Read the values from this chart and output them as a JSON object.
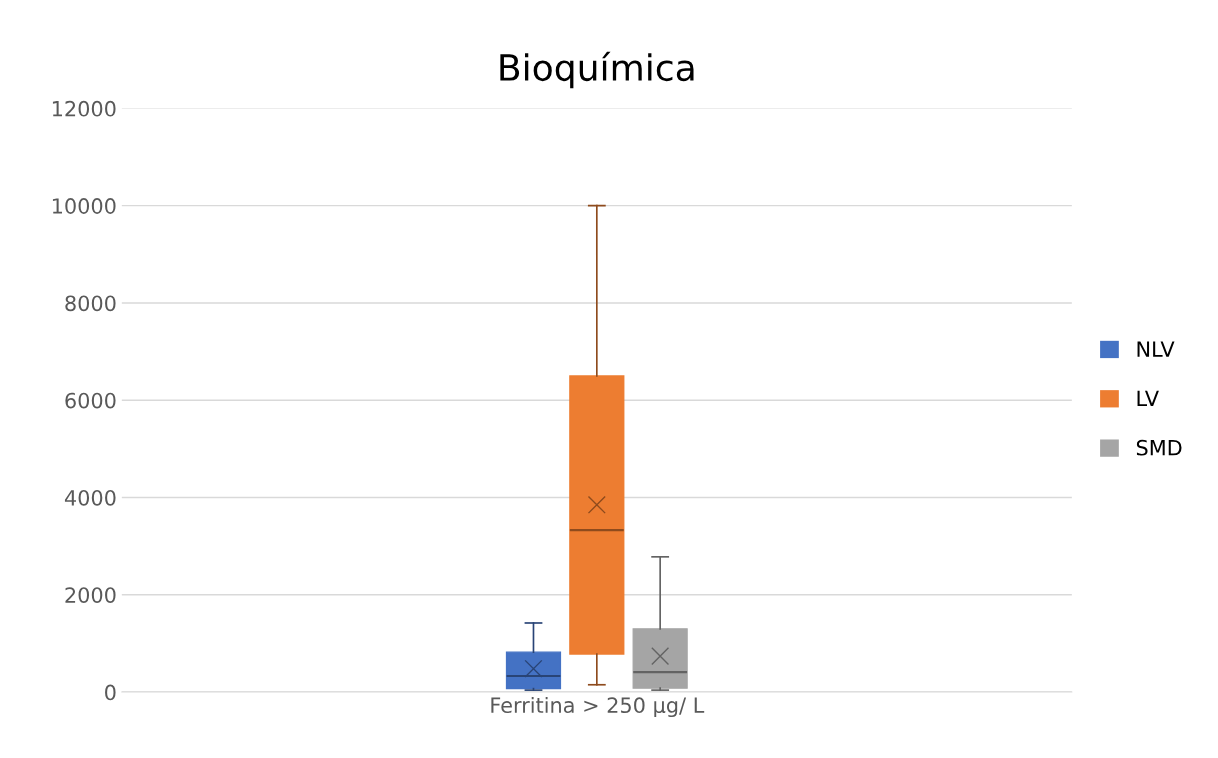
{
  "chart_data": {
    "type": "box",
    "title": "Bioquímica",
    "categories": [
      "Ferritina > 250 µg/ L"
    ],
    "series": [
      {
        "name": "NLV",
        "color": "#4472c4",
        "boxes": [
          {
            "low": 40,
            "q1": 70,
            "median": 330,
            "q3": 820,
            "high": 1420,
            "mean": 480
          }
        ]
      },
      {
        "name": "LV",
        "color": "#ed7d31",
        "boxes": [
          {
            "low": 150,
            "q1": 780,
            "median": 3330,
            "q3": 6500,
            "high": 10000,
            "mean": 3850
          }
        ]
      },
      {
        "name": "SMD",
        "color": "#a5a5a5",
        "boxes": [
          {
            "low": 40,
            "q1": 80,
            "median": 410,
            "q3": 1300,
            "high": 2780,
            "mean": 740
          }
        ]
      }
    ],
    "ylim": [
      0,
      12000
    ],
    "yticks": [
      0,
      2000,
      4000,
      6000,
      8000,
      10000,
      12000
    ],
    "grid": "y",
    "legend": "right"
  }
}
